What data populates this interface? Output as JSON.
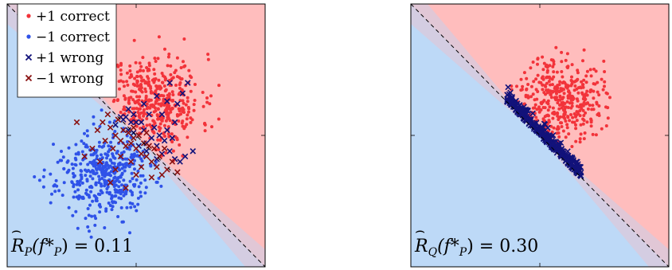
{
  "colors": {
    "pos_region": "#ffbdbd",
    "neg_region": "#bdd9f7",
    "margin_band": "#d9c9dc",
    "pos_correct": "#f2333a",
    "neg_correct": "#2f52e8",
    "pos_wrong": "#12127a",
    "neg_wrong": "#8a1212",
    "boundary": "#000000"
  },
  "legend": [
    {
      "key": "pos_correct",
      "marker": "dot",
      "label": "+1 correct"
    },
    {
      "key": "neg_correct",
      "marker": "dot",
      "label": "−1 correct"
    },
    {
      "key": "pos_wrong",
      "marker": "cross",
      "label": "+1 wrong"
    },
    {
      "key": "neg_wrong",
      "marker": "cross",
      "label": "−1 wrong"
    }
  ],
  "chart_data": [
    {
      "type": "scatter",
      "panel": "left",
      "title": "",
      "xlabel": "",
      "ylabel": "",
      "xlim": [
        0,
        1
      ],
      "ylim": [
        0,
        1
      ],
      "grid": false,
      "legend_position": "top-left",
      "annotation": {
        "math_base": "R",
        "math_sub": "P",
        "tail": "(f*",
        "tail_sub": "P",
        "tail_end": ") = 0.11"
      },
      "decision_boundary": {
        "type": "line",
        "from": [
          0,
          1
        ],
        "to": [
          1,
          0
        ],
        "style": "dashed"
      },
      "series": [
        {
          "name": "+1 correct",
          "marker": "dot",
          "color_key": "pos_correct",
          "clusters": [
            {
              "center": [
                0.57,
                0.63
              ],
              "spread": [
                0.09,
                0.09
              ],
              "count": 430,
              "seed": 11,
              "region": "above_boundary"
            }
          ]
        },
        {
          "name": "−1 correct",
          "marker": "dot",
          "color_key": "neg_correct",
          "clusters": [
            {
              "center": [
                0.37,
                0.35
              ],
              "spread": [
                0.09,
                0.08
              ],
              "count": 430,
              "seed": 23,
              "region": "below_boundary"
            }
          ]
        },
        {
          "name": "+1 wrong",
          "marker": "cross",
          "color_key": "pos_wrong",
          "points": [
            [
              0.42,
              0.54
            ],
            [
              0.45,
              0.56
            ],
            [
              0.47,
              0.52
            ],
            [
              0.49,
              0.58
            ],
            [
              0.51,
              0.5
            ],
            [
              0.52,
              0.55
            ],
            [
              0.54,
              0.47
            ],
            [
              0.53,
              0.52
            ],
            [
              0.56,
              0.49
            ],
            [
              0.58,
              0.46
            ],
            [
              0.6,
              0.43
            ],
            [
              0.61,
              0.48
            ],
            [
              0.63,
              0.44
            ],
            [
              0.65,
              0.41
            ],
            [
              0.67,
              0.4
            ],
            [
              0.69,
              0.42
            ],
            [
              0.57,
              0.53
            ],
            [
              0.55,
              0.58
            ],
            [
              0.5,
              0.55
            ],
            [
              0.48,
              0.55
            ],
            [
              0.46,
              0.57
            ],
            [
              0.44,
              0.57
            ],
            [
              0.59,
              0.5
            ],
            [
              0.62,
              0.52
            ],
            [
              0.6,
              0.58
            ],
            [
              0.65,
              0.55
            ],
            [
              0.66,
              0.62
            ],
            [
              0.62,
              0.63
            ],
            [
              0.58,
              0.65
            ],
            [
              0.68,
              0.66
            ],
            [
              0.7,
              0.7
            ],
            [
              0.63,
              0.7
            ],
            [
              0.53,
              0.62
            ],
            [
              0.72,
              0.44
            ],
            [
              0.58,
              0.41
            ],
            [
              0.54,
              0.44
            ],
            [
              0.51,
              0.46
            ],
            [
              0.49,
              0.51
            ],
            [
              0.64,
              0.49
            ],
            [
              0.47,
              0.6
            ]
          ]
        },
        {
          "name": "−1 wrong",
          "marker": "cross",
          "color_key": "neg_wrong",
          "points": [
            [
              0.27,
              0.55
            ],
            [
              0.37,
              0.55
            ],
            [
              0.4,
              0.53
            ],
            [
              0.42,
              0.5
            ],
            [
              0.44,
              0.48
            ],
            [
              0.46,
              0.46
            ],
            [
              0.48,
              0.47
            ],
            [
              0.5,
              0.45
            ],
            [
              0.52,
              0.43
            ],
            [
              0.54,
              0.42
            ],
            [
              0.56,
              0.4
            ],
            [
              0.58,
              0.38
            ],
            [
              0.6,
              0.35
            ],
            [
              0.62,
              0.37
            ],
            [
              0.64,
              0.4
            ],
            [
              0.66,
              0.36
            ],
            [
              0.45,
              0.52
            ],
            [
              0.49,
              0.49
            ],
            [
              0.53,
              0.47
            ],
            [
              0.55,
              0.46
            ],
            [
              0.51,
              0.5
            ],
            [
              0.47,
              0.51
            ],
            [
              0.43,
              0.56
            ],
            [
              0.39,
              0.58
            ],
            [
              0.35,
              0.52
            ],
            [
              0.41,
              0.45
            ],
            [
              0.44,
              0.42
            ],
            [
              0.48,
              0.4
            ],
            [
              0.52,
              0.38
            ],
            [
              0.56,
              0.34
            ],
            [
              0.46,
              0.3
            ],
            [
              0.4,
              0.32
            ],
            [
              0.42,
              0.37
            ],
            [
              0.5,
              0.35
            ],
            [
              0.57,
              0.45
            ],
            [
              0.59,
              0.42
            ],
            [
              0.61,
              0.45
            ],
            [
              0.38,
              0.48
            ],
            [
              0.33,
              0.45
            ],
            [
              0.3,
              0.42
            ],
            [
              0.36,
              0.4
            ],
            [
              0.54,
              0.51
            ],
            [
              0.49,
              0.53
            ]
          ]
        }
      ]
    },
    {
      "type": "scatter",
      "panel": "right",
      "title": "",
      "xlabel": "",
      "ylabel": "",
      "xlim": [
        0,
        1
      ],
      "ylim": [
        0,
        1
      ],
      "grid": false,
      "annotation": {
        "math_base": "R",
        "math_sub": "Q",
        "tail": "(f*",
        "tail_sub": "P",
        "tail_end": ") = 0.30"
      },
      "decision_boundary": {
        "type": "line",
        "from": [
          0,
          1
        ],
        "to": [
          1,
          0
        ],
        "style": "dashed"
      },
      "series": [
        {
          "name": "+1 correct",
          "marker": "dot",
          "color_key": "pos_correct",
          "clusters": [
            {
              "center": [
                0.58,
                0.64
              ],
              "spread": [
                0.08,
                0.08
              ],
              "count": 400,
              "seed": 37,
              "region": "above_boundary"
            }
          ]
        },
        {
          "name": "+1 wrong",
          "marker": "cross",
          "color_key": "pos_wrong",
          "band": {
            "along_boundary": [
              0.37,
              0.66
            ],
            "offset_range": [
              0.0,
              0.06
            ],
            "count": 300,
            "seed": 41
          }
        }
      ]
    }
  ]
}
